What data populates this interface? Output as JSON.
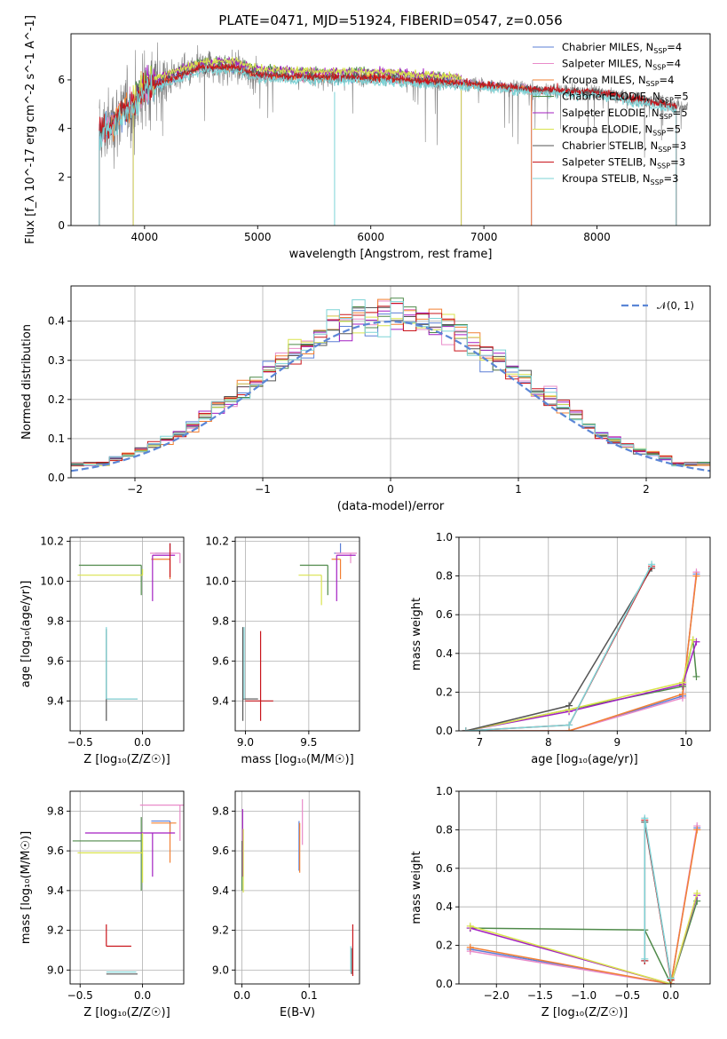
{
  "figure_title": "PLATE=0471, MJD=51924, FIBERID=0547, z=0.056",
  "colors": {
    "Chabrier MILES": "#5b7fd6",
    "Salpeter MILES": "#e98bc9",
    "Kroupa MILES": "#f28033",
    "Chabrier ELODIE": "#4f8a4a",
    "Salpeter ELODIE": "#a31fc2",
    "Kroupa ELODIE": "#d9e34d",
    "Chabrier STELIB": "#555555",
    "Salpeter STELIB": "#c9141b",
    "Kroupa STELIB": "#7dd3d6",
    "data": "#808080",
    "gaussian": "#5b86d6"
  },
  "chart_data": [
    {
      "type": "line",
      "xlabel": "wavelength [Angstrom, rest frame]",
      "ylabel": "Flux [f_λ 10^-17 erg cm^-2 s^-1 A^-1]",
      "xlim": [
        3350,
        9000
      ],
      "ylim": [
        0,
        7.9
      ],
      "xticks": [
        "4000",
        "5000",
        "6000",
        "7000",
        "8000"
      ],
      "yticks": [
        "0",
        "2",
        "4",
        "6"
      ],
      "grid": false,
      "legend_position": "right",
      "legend": [
        {
          "name": "Chabrier MILES",
          "label": "Chabrier MILES, N",
          "sub": "SSP",
          "tail": "=4"
        },
        {
          "name": "Salpeter MILES",
          "label": "Salpeter MILES, N",
          "sub": "SSP",
          "tail": "=4"
        },
        {
          "name": "Kroupa MILES",
          "label": "Kroupa MILES, N",
          "sub": "SSP",
          "tail": "=4"
        },
        {
          "name": "Chabrier ELODIE",
          "label": "Chabrier ELODIE, N",
          "sub": "SSP",
          "tail": "=5"
        },
        {
          "name": "Salpeter ELODIE",
          "label": "Salpeter ELODIE, N",
          "sub": "SSP",
          "tail": "=5"
        },
        {
          "name": "Kroupa ELODIE",
          "label": "Kroupa ELODIE, N",
          "sub": "SSP",
          "tail": "=5"
        },
        {
          "name": "Chabrier STELIB",
          "label": "Chabrier STELIB, N",
          "sub": "SSP",
          "tail": "=3"
        },
        {
          "name": "Salpeter STELIB",
          "label": "Salpeter STELIB, N",
          "sub": "SSP",
          "tail": "=3"
        },
        {
          "name": "Kroupa STELIB",
          "label": "Kroupa STELIB, N",
          "sub": "SSP",
          "tail": "=3"
        }
      ],
      "data_range": [
        3600,
        8800
      ],
      "model_ranges": {
        "MILES": [
          3600,
          7420
        ],
        "ELODIE": [
          3900,
          6800
        ],
        "STELIB": [
          3600,
          8700
        ]
      },
      "continuum": [
        [
          3600,
          3.8
        ],
        [
          3700,
          4.1
        ],
        [
          3800,
          4.7
        ],
        [
          3900,
          5.0
        ],
        [
          4000,
          5.6
        ],
        [
          4200,
          6.0
        ],
        [
          4500,
          6.5
        ],
        [
          4800,
          6.5
        ],
        [
          5000,
          6.2
        ],
        [
          5500,
          6.1
        ],
        [
          6000,
          6.1
        ],
        [
          6500,
          5.95
        ],
        [
          7000,
          5.8
        ],
        [
          7500,
          5.6
        ],
        [
          8000,
          5.5
        ],
        [
          8500,
          5.1
        ],
        [
          8700,
          4.9
        ]
      ]
    },
    {
      "type": "line",
      "xlabel": "(data-model)/error",
      "ylabel": "Normed distribution",
      "xlim": [
        -2.5,
        2.5
      ],
      "ylim": [
        0,
        0.49
      ],
      "xticks": [
        "−2",
        "−1",
        "0",
        "1",
        "2"
      ],
      "yticks": [
        "0.0",
        "0.1",
        "0.2",
        "0.3",
        "0.4"
      ],
      "grid": true,
      "legend_position": "top-right",
      "legend": [
        {
          "name": "gaussian",
          "label": "𝒩(0, 1)"
        }
      ],
      "gaussian": {
        "mean": 0,
        "sigma": 1
      },
      "bin_width": 0.1
    },
    {
      "type": "scatter",
      "xlabel": "Z [log₁₀(Z/Z☉)]",
      "ylabel": "age  [log₁₀(age/yr)]",
      "xlim": [
        -0.58,
        0.33
      ],
      "ylim": [
        9.25,
        10.22
      ],
      "xticks": [
        "−0.5",
        "0.0"
      ],
      "yticks": [
        "9.4",
        "9.6",
        "9.8",
        "10.0",
        "10.2"
      ],
      "grid": true,
      "points": [
        {
          "name": "Chabrier MILES",
          "x": 0.22,
          "y": 10.14,
          "xerr": [
            0.12,
            0.0
          ],
          "yerr": [
            0.0,
            0.05
          ]
        },
        {
          "name": "Salpeter MILES",
          "x": 0.3,
          "y": 10.14,
          "xerr": [
            0.24,
            0.0
          ],
          "yerr": [
            0.05,
            0.0
          ]
        },
        {
          "name": "Kroupa MILES",
          "x": 0.22,
          "y": 10.11,
          "xerr": [
            0.15,
            0.0
          ],
          "yerr": [
            0.1,
            0.0
          ]
        },
        {
          "name": "Chabrier ELODIE",
          "x": -0.01,
          "y": 10.08,
          "xerr": [
            0.5,
            0.0
          ],
          "yerr": [
            0.15,
            0.0
          ]
        },
        {
          "name": "Salpeter ELODIE",
          "x": 0.08,
          "y": 10.13,
          "xerr": [
            0.0,
            0.18
          ],
          "yerr": [
            0.23,
            0.0
          ]
        },
        {
          "name": "Kroupa ELODIE",
          "x": 0.0,
          "y": 10.03,
          "xerr": [
            0.52,
            0.0
          ],
          "yerr": [
            0.0,
            0.03
          ]
        },
        {
          "name": "Chabrier STELIB",
          "x": -0.29,
          "y": 9.41,
          "xerr": [
            0.0,
            0.25
          ],
          "yerr": [
            0.11,
            0.35
          ]
        },
        {
          "name": "Salpeter STELIB",
          "x": 0.22,
          "y": 10.02,
          "xerr": [
            0.0,
            0.0
          ],
          "yerr": [
            0.0,
            0.17
          ]
        },
        {
          "name": "Kroupa STELIB",
          "x": -0.29,
          "y": 9.41,
          "xerr": [
            0.0,
            0.25
          ],
          "yerr": [
            0.0,
            0.36
          ]
        }
      ]
    },
    {
      "type": "scatter",
      "xlabel": "mass [log₁₀(M/M☉)]",
      "ylabel": "",
      "xlim": [
        8.92,
        9.9
      ],
      "ylim": [
        9.25,
        10.22
      ],
      "xticks": [
        "9.0",
        "9.5"
      ],
      "yticks": [
        "9.4",
        "9.6",
        "9.8",
        "10.0",
        "10.2"
      ],
      "grid": true,
      "points": [
        {
          "name": "Chabrier MILES",
          "x": 9.75,
          "y": 10.14,
          "xerr": [
            0.05,
            0.0
          ],
          "yerr": [
            0.0,
            0.05
          ]
        },
        {
          "name": "Salpeter MILES",
          "x": 9.83,
          "y": 10.14,
          "xerr": [
            0.12,
            0.05
          ],
          "yerr": [
            0.05,
            0.0
          ]
        },
        {
          "name": "Kroupa MILES",
          "x": 9.75,
          "y": 10.11,
          "xerr": [
            0.07,
            0.0
          ],
          "yerr": [
            0.1,
            0.0
          ]
        },
        {
          "name": "Chabrier ELODIE",
          "x": 9.65,
          "y": 10.08,
          "xerr": [
            0.22,
            0.0
          ],
          "yerr": [
            0.15,
            0.0
          ]
        },
        {
          "name": "Salpeter ELODIE",
          "x": 9.72,
          "y": 10.13,
          "xerr": [
            0.0,
            0.15
          ],
          "yerr": [
            0.23,
            0.0
          ]
        },
        {
          "name": "Kroupa ELODIE",
          "x": 9.6,
          "y": 10.03,
          "xerr": [
            0.18,
            0.0
          ],
          "yerr": [
            0.15,
            0.0
          ]
        },
        {
          "name": "Chabrier STELIB",
          "x": 8.98,
          "y": 9.41,
          "xerr": [
            0.0,
            0.12
          ],
          "yerr": [
            0.11,
            0.36
          ]
        },
        {
          "name": "Salpeter STELIB",
          "x": 9.12,
          "y": 9.4,
          "xerr": [
            0.12,
            0.1
          ],
          "yerr": [
            0.1,
            0.35
          ]
        },
        {
          "name": "Kroupa STELIB",
          "x": 8.99,
          "y": 9.41,
          "xerr": [
            0.0,
            0.0
          ],
          "yerr": [
            0.0,
            0.36
          ]
        }
      ]
    },
    {
      "type": "line",
      "xlabel": "age  [log₁₀(age/yr)]",
      "ylabel": "mass weight",
      "xlim": [
        6.7,
        10.35
      ],
      "ylim": [
        0,
        1.0
      ],
      "xticks": [
        "7",
        "8",
        "9",
        "10"
      ],
      "yticks": [
        "0.0",
        "0.2",
        "0.4",
        "0.6",
        "0.8",
        "1.0"
      ],
      "grid": true,
      "series": [
        {
          "name": "Chabrier MILES",
          "x": [
            6.8,
            8.3,
            9.95,
            10.15
          ],
          "y": [
            0.0,
            0.0,
            0.18,
            0.81
          ]
        },
        {
          "name": "Salpeter MILES",
          "x": [
            6.8,
            8.3,
            9.95,
            10.15
          ],
          "y": [
            0.0,
            0.0,
            0.17,
            0.82
          ]
        },
        {
          "name": "Kroupa MILES",
          "x": [
            6.8,
            8.3,
            9.95,
            10.15
          ],
          "y": [
            0.0,
            0.0,
            0.19,
            0.8
          ]
        },
        {
          "name": "Chabrier ELODIE",
          "x": [
            6.8,
            9.95,
            10.1,
            10.15
          ],
          "y": [
            0.0,
            0.23,
            0.47,
            0.28
          ]
        },
        {
          "name": "Salpeter ELODIE",
          "x": [
            6.8,
            8.3,
            9.95,
            10.15
          ],
          "y": [
            0.0,
            0.1,
            0.24,
            0.46
          ]
        },
        {
          "name": "Kroupa ELODIE",
          "x": [
            6.8,
            8.3,
            9.95,
            10.1
          ],
          "y": [
            0.0,
            0.11,
            0.25,
            0.47
          ]
        },
        {
          "name": "Chabrier STELIB",
          "x": [
            6.8,
            8.3,
            9.5
          ],
          "y": [
            0.0,
            0.13,
            0.84
          ]
        },
        {
          "name": "Salpeter STELIB",
          "x": [
            6.8,
            8.3,
            9.5
          ],
          "y": [
            0.0,
            0.03,
            0.85
          ]
        },
        {
          "name": "Kroupa STELIB",
          "x": [
            6.8,
            8.3,
            9.5
          ],
          "y": [
            0.0,
            0.03,
            0.86
          ]
        }
      ]
    },
    {
      "type": "scatter",
      "xlabel": "Z [log₁₀(Z/Z☉)]",
      "ylabel": "mass [log₁₀(M/M☉)]",
      "xlim": [
        -0.58,
        0.33
      ],
      "ylim": [
        8.93,
        9.9
      ],
      "xticks": [
        "−0.5",
        "0.0"
      ],
      "yticks": [
        "9.0",
        "9.2",
        "9.4",
        "9.6",
        "9.8"
      ],
      "grid": true,
      "points": [
        {
          "name": "Chabrier MILES",
          "x": 0.22,
          "y": 9.75,
          "xerr": [
            0.15,
            0.0
          ],
          "yerr": [
            0.06,
            0.0
          ]
        },
        {
          "name": "Salpeter MILES",
          "x": 0.3,
          "y": 9.83,
          "xerr": [
            0.32,
            0.05
          ],
          "yerr": [
            0.18,
            0.0
          ]
        },
        {
          "name": "Kroupa MILES",
          "x": 0.22,
          "y": 9.74,
          "xerr": [
            0.15,
            0.05
          ],
          "yerr": [
            0.2,
            0.0
          ]
        },
        {
          "name": "Chabrier ELODIE",
          "x": -0.01,
          "y": 9.65,
          "xerr": [
            0.55,
            0.0
          ],
          "yerr": [
            0.25,
            0.12
          ]
        },
        {
          "name": "Salpeter ELODIE",
          "x": 0.08,
          "y": 9.69,
          "xerr": [
            0.54,
            0.18
          ],
          "yerr": [
            0.22,
            0.0
          ]
        },
        {
          "name": "Kroupa ELODIE",
          "x": 0.0,
          "y": 9.59,
          "xerr": [
            0.52,
            0.0
          ],
          "yerr": [
            0.15,
            0.1
          ]
        },
        {
          "name": "Chabrier STELIB",
          "x": -0.29,
          "y": 8.98,
          "xerr": [
            0.0,
            0.25
          ],
          "yerr": [
            0.0,
            0.0
          ]
        },
        {
          "name": "Salpeter STELIB",
          "x": -0.29,
          "y": 9.12,
          "xerr": [
            0.0,
            0.2
          ],
          "yerr": [
            0.0,
            0.11
          ]
        },
        {
          "name": "Kroupa STELIB",
          "x": -0.29,
          "y": 8.99,
          "xerr": [
            0.0,
            0.24
          ],
          "yerr": [
            0.0,
            0.0
          ]
        }
      ]
    },
    {
      "type": "scatter",
      "xlabel": "E(B-V)",
      "ylabel": "",
      "xlim": [
        -0.01,
        0.175
      ],
      "ylim": [
        8.93,
        9.9
      ],
      "xticks": [
        "0.0",
        "0.1"
      ],
      "yticks": [
        "9.0",
        "9.2",
        "9.4",
        "9.6",
        "9.8"
      ],
      "grid": true,
      "points": [
        {
          "name": "Chabrier MILES",
          "x": 0.085,
          "y": 9.75,
          "xerr": [
            0.0,
            0.0
          ],
          "yerr": [
            0.25,
            0.0
          ]
        },
        {
          "name": "Salpeter MILES",
          "x": 0.09,
          "y": 9.83,
          "xerr": [
            0.0,
            0.0
          ],
          "yerr": [
            0.2,
            0.03
          ]
        },
        {
          "name": "Kroupa MILES",
          "x": 0.086,
          "y": 9.74,
          "xerr": [
            0.0,
            0.0
          ],
          "yerr": [
            0.25,
            0.0
          ]
        },
        {
          "name": "Chabrier ELODIE",
          "x": 0.0,
          "y": 9.65,
          "xerr": [
            0.0,
            0.0
          ],
          "yerr": [
            0.25,
            0.0
          ]
        },
        {
          "name": "Salpeter ELODIE",
          "x": 0.001,
          "y": 9.69,
          "xerr": [
            0.0,
            0.0
          ],
          "yerr": [
            0.22,
            0.12
          ]
        },
        {
          "name": "Kroupa ELODIE",
          "x": 0.002,
          "y": 9.59,
          "xerr": [
            0.0,
            0.0
          ],
          "yerr": [
            0.2,
            0.12
          ]
        },
        {
          "name": "Chabrier STELIB",
          "x": 0.163,
          "y": 8.98,
          "xerr": [
            0.0,
            0.0
          ],
          "yerr": [
            0.0,
            0.13
          ]
        },
        {
          "name": "Salpeter STELIB",
          "x": 0.165,
          "y": 9.12,
          "xerr": [
            0.0,
            0.0
          ],
          "yerr": [
            0.15,
            0.11
          ]
        },
        {
          "name": "Kroupa STELIB",
          "x": 0.162,
          "y": 8.99,
          "xerr": [
            0.0,
            0.0
          ],
          "yerr": [
            0.0,
            0.13
          ]
        }
      ]
    },
    {
      "type": "line",
      "xlabel": "Z [log₁₀(Z/Z☉)]",
      "ylabel": "mass weight",
      "xlim": [
        -2.43,
        0.45
      ],
      "ylim": [
        0,
        1.0
      ],
      "xticks": [
        "−2.0",
        "−1.5",
        "−1.0",
        "−0.5",
        "0.0"
      ],
      "yticks": [
        "0.0",
        "0.2",
        "0.4",
        "0.6",
        "0.8",
        "1.0"
      ],
      "grid": true,
      "series": [
        {
          "name": "Chabrier MILES",
          "x": [
            -2.3,
            0.0,
            0.3
          ],
          "y": [
            0.18,
            0.0,
            0.81
          ]
        },
        {
          "name": "Salpeter MILES",
          "x": [
            -2.3,
            0.0,
            0.3
          ],
          "y": [
            0.17,
            0.0,
            0.82
          ]
        },
        {
          "name": "Kroupa MILES",
          "x": [
            -2.3,
            0.0,
            0.3
          ],
          "y": [
            0.19,
            0.0,
            0.8
          ]
        },
        {
          "name": "Chabrier ELODIE",
          "x": [
            -2.3,
            -0.3,
            0.0,
            0.3
          ],
          "y": [
            0.29,
            0.28,
            0.0,
            0.43
          ]
        },
        {
          "name": "Salpeter ELODIE",
          "x": [
            -2.3,
            0.0,
            0.3
          ],
          "y": [
            0.29,
            0.0,
            0.46
          ]
        },
        {
          "name": "Kroupa ELODIE",
          "x": [
            -2.3,
            0.0,
            0.3
          ],
          "y": [
            0.3,
            0.0,
            0.47
          ]
        },
        {
          "name": "Chabrier STELIB",
          "x": [
            -0.3,
            -0.3,
            0.0
          ],
          "y": [
            0.12,
            0.84,
            0.03
          ]
        },
        {
          "name": "Salpeter STELIB",
          "x": [
            -0.3,
            -0.3,
            0.0
          ],
          "y": [
            0.12,
            0.85,
            0.02
          ]
        },
        {
          "name": "Kroupa STELIB",
          "x": [
            -0.3,
            -0.3,
            0.0
          ],
          "y": [
            0.13,
            0.86,
            0.03
          ]
        }
      ]
    }
  ]
}
